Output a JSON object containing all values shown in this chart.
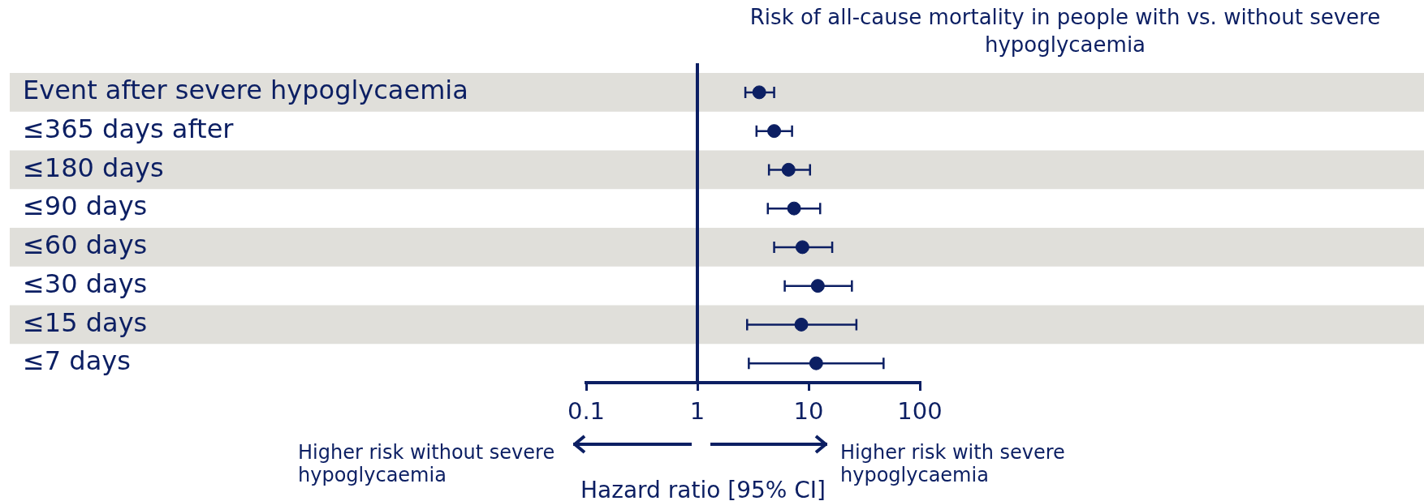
{
  "chart_data": {
    "type": "scatter",
    "orientation": "horizontal",
    "title": "Risk of all-cause mortality in people with vs. without severe hypoglycaemia",
    "xlabel": "Hazard ratio [95% CI]",
    "categories": [
      "Event after severe hypoglycaemia",
      "≤365 days after",
      "≤180 days",
      "≤90 days",
      "≤60 days",
      "≤30 days",
      "≤15 days",
      "≤7 days"
    ],
    "values": [
      3.6,
      4.9,
      6.6,
      7.4,
      8.8,
      12.1,
      8.6,
      11.7
    ],
    "errors": [
      [
        2.7,
        4.9
      ],
      [
        3.4,
        7.1
      ],
      [
        4.4,
        10.3
      ],
      [
        4.3,
        12.7
      ],
      [
        4.9,
        16.3
      ],
      [
        6.1,
        24.5
      ],
      [
        2.8,
        26.9
      ],
      [
        2.9,
        47.2
      ]
    ],
    "color": "#0c1f63",
    "marker": "circle",
    "log": "x",
    "xlim": [
      0.1,
      100
    ],
    "xticks": [
      0.1,
      1,
      10,
      100
    ],
    "ref_lines": [
      {
        "axis": "x",
        "value": 1
      }
    ],
    "bands": [
      {
        "axis": "y",
        "from": "Event after severe hypoglycaemia",
        "to": "Event after severe hypoglycaemia",
        "color": "#e0dfda"
      },
      {
        "axis": "y",
        "from": "≤180 days",
        "to": "≤180 days",
        "color": "#e0dfda"
      },
      {
        "axis": "y",
        "from": "≤60 days",
        "to": "≤60 days",
        "color": "#e0dfda"
      },
      {
        "axis": "y",
        "from": "≤15 days",
        "to": "≤15 days",
        "color": "#e0dfda"
      }
    ],
    "annotations": [
      "Higher risk without severe hypoglycaemia",
      "Higher risk with severe hypoglycaemia"
    ]
  }
}
